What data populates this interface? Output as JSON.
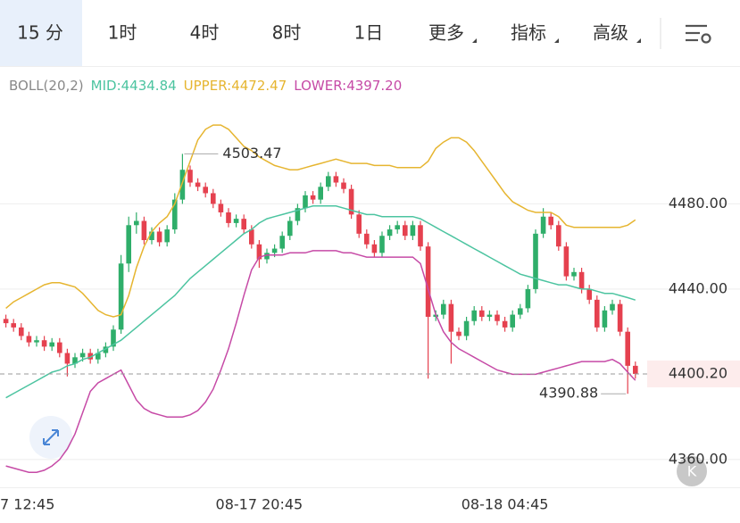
{
  "tabs": [
    "15 分",
    "1时",
    "4时",
    "8时",
    "1日",
    "更多",
    "指标",
    "高级"
  ],
  "indicator_legend": {
    "name": "BOLL(20,2)",
    "mid": "MID:4434.84",
    "upper": "UPPER:4472.47",
    "lower": "LOWER:4397.20"
  },
  "chart_data": {
    "type": "candlestick",
    "categories": [
      null,
      "7 12:45",
      null,
      null,
      null,
      null,
      null,
      null,
      null,
      null,
      null,
      null,
      null,
      null,
      null,
      null,
      null,
      null,
      null,
      null,
      null,
      null,
      null,
      null,
      null,
      null,
      null,
      null,
      null,
      null,
      null,
      null,
      null,
      "08-17 20:45",
      null,
      null,
      null,
      null,
      null,
      null,
      null,
      null,
      null,
      null,
      null,
      null,
      null,
      null,
      null,
      null,
      null,
      null,
      null,
      null,
      null,
      null,
      null,
      null,
      null,
      null,
      null,
      null,
      null,
      null,
      null,
      "08-18 04:45",
      null,
      null,
      null,
      null,
      null,
      null,
      null,
      null,
      null,
      null,
      null,
      null,
      null,
      null,
      null,
      null,
      null
    ],
    "up_color": "#2fae6a",
    "down_color": "#e5414f",
    "open": [
      4426,
      4424,
      4422,
      4418,
      4415,
      4416,
      4413,
      4415,
      4410,
      4405,
      4408,
      4410,
      4407,
      4410,
      4413,
      4421,
      4452,
      4470,
      4472,
      4463,
      4467,
      4462,
      4468,
      4482,
      4496,
      4490,
      4488,
      4485,
      4480,
      4476,
      4471,
      4473,
      4468,
      4461,
      4454,
      4457,
      4459,
      4465,
      4472,
      4478,
      4484,
      4482,
      4488,
      4493,
      4490,
      4487,
      4475,
      4466,
      4461,
      4457,
      4465,
      4468,
      4470,
      4465,
      4470,
      4460,
      4427,
      4428,
      4433,
      4420,
      4418,
      4425,
      4430,
      4427,
      4428,
      4425,
      4422,
      4428,
      4431,
      4440,
      4466,
      4474,
      4470,
      4460,
      4446,
      4448,
      4440,
      4435,
      4422,
      4430,
      4433,
      4420,
      4404
    ],
    "high": [
      4428,
      4426,
      4424,
      4420,
      4418,
      4418,
      4417,
      4417,
      4412,
      4410,
      4412,
      4412,
      4412,
      4415,
      4423,
      4456,
      4474,
      4476,
      4474,
      4469,
      4469,
      4470,
      4485,
      4503.47,
      4498,
      4492,
      4490,
      4487,
      4482,
      4478,
      4475,
      4475,
      4470,
      4463,
      4459,
      4461,
      4467,
      4474,
      4480,
      4486,
      4486,
      4490,
      4495,
      4495,
      4492,
      4489,
      4477,
      4468,
      4463,
      4467,
      4470,
      4472,
      4472,
      4472,
      4472,
      4462,
      4430,
      4435,
      4435,
      4422,
      4427,
      4432,
      4432,
      4430,
      4430,
      4427,
      4430,
      4433,
      4442,
      4468,
      4478,
      4476,
      4472,
      4462,
      4450,
      4450,
      4442,
      4437,
      4432,
      4435,
      4435,
      4422,
      4406
    ],
    "low": [
      4422,
      4420,
      4416,
      4413,
      4413,
      4411,
      4411,
      4408,
      4399,
      4403,
      4406,
      4405,
      4405,
      4408,
      4411,
      4419,
      4448,
      4466,
      4461,
      4461,
      4460,
      4460,
      4466,
      4480,
      4488,
      4486,
      4483,
      4478,
      4474,
      4469,
      4469,
      4466,
      4459,
      4450,
      4452,
      4455,
      4457,
      4463,
      4470,
      4476,
      4480,
      4480,
      4486,
      4488,
      4485,
      4473,
      4464,
      4459,
      4455,
      4455,
      4463,
      4466,
      4463,
      4463,
      4458,
      4398,
      4425,
      4426,
      4405,
      4416,
      4416,
      4423,
      4425,
      4425,
      4423,
      4420,
      4420,
      4426,
      4429,
      4438,
      4464,
      4468,
      4458,
      4444,
      4444,
      4438,
      4433,
      4420,
      4420,
      4428,
      4418,
      4390.88,
      4398
    ],
    "close": [
      4424,
      4422,
      4418,
      4415,
      4416,
      4413,
      4415,
      4410,
      4405,
      4408,
      4410,
      4407,
      4410,
      4413,
      4421,
      4452,
      4470,
      4472,
      4463,
      4467,
      4462,
      4468,
      4482,
      4496,
      4490,
      4488,
      4485,
      4480,
      4476,
      4471,
      4473,
      4468,
      4461,
      4454,
      4457,
      4459,
      4465,
      4472,
      4478,
      4484,
      4482,
      4488,
      4493,
      4490,
      4487,
      4475,
      4466,
      4461,
      4457,
      4465,
      4468,
      4470,
      4465,
      4470,
      4460,
      4427,
      4428,
      4433,
      4420,
      4418,
      4425,
      4430,
      4427,
      4428,
      4425,
      4422,
      4428,
      4431,
      4440,
      4466,
      4474,
      4470,
      4460,
      4446,
      4448,
      4440,
      4435,
      4422,
      4430,
      4433,
      4420,
      4404,
      4400.2
    ],
    "bands": [
      {
        "color": "#e6b530",
        "values": [
          4431,
          4434,
          4436,
          4438,
          4440,
          4442,
          4443,
          4443,
          4442,
          4441,
          4438,
          4434,
          4430,
          4428,
          4427,
          4428,
          4437,
          4450,
          4460,
          4467,
          4471,
          4474,
          4480,
          4490,
          4500,
          4510,
          4515,
          4517,
          4517,
          4515,
          4511,
          4507,
          4505,
          4502,
          4500,
          4498,
          4497,
          4496,
          4496,
          4497,
          4498,
          4499,
          4500,
          4501,
          4500,
          4499,
          4499,
          4499,
          4498,
          4498,
          4498,
          4497,
          4497,
          4497,
          4497,
          4500,
          4506,
          4509,
          4511,
          4511,
          4509,
          4505,
          4500,
          4495,
          4490,
          4485,
          4481,
          4479,
          4477,
          4476,
          4476,
          4476,
          4474,
          4470,
          4469,
          4469,
          4469,
          4469,
          4469,
          4469,
          4469,
          4470,
          4472.47
        ]
      },
      {
        "color": "#4cc4a0",
        "values": [
          4389,
          4391,
          4393,
          4395,
          4397,
          4399,
          4401,
          4402,
          4404,
          4405,
          4407,
          4408,
          4410,
          4412,
          4414,
          4416,
          4419,
          4422,
          4425,
          4428,
          4431,
          4434,
          4437,
          4441,
          4445,
          4448,
          4451,
          4454,
          4457,
          4460,
          4463,
          4466,
          4468,
          4471,
          4473,
          4474,
          4475,
          4476,
          4477,
          4478,
          4479,
          4479,
          4479,
          4479,
          4478,
          4477,
          4476,
          4475,
          4475,
          4474,
          4474,
          4474,
          4474,
          4474,
          4473,
          4471,
          4469,
          4467,
          4465,
          4463,
          4461,
          4459,
          4457,
          4455,
          4453,
          4451,
          4449,
          4447,
          4446,
          4445,
          4444,
          4443,
          4442,
          4442,
          4441,
          4440,
          4440,
          4439,
          4438,
          4438,
          4437,
          4436,
          4434.84
        ]
      },
      {
        "color": "#c64aa6",
        "values": [
          4357,
          4356,
          4355,
          4354,
          4354,
          4355,
          4357,
          4360,
          4365,
          4372,
          4382,
          4392,
          4396,
          4398,
          4400,
          4402,
          4395,
          4388,
          4384,
          4382,
          4381,
          4380,
          4380,
          4380,
          4381,
          4383,
          4387,
          4393,
          4402,
          4412,
          4424,
          4437,
          4449,
          4455,
          4456,
          4456,
          4456,
          4457,
          4457,
          4457,
          4458,
          4458,
          4458,
          4458,
          4457,
          4457,
          4456,
          4455,
          4455,
          4455,
          4455,
          4455,
          4455,
          4455,
          4452,
          4440,
          4428,
          4420,
          4415,
          4412,
          4410,
          4408,
          4406,
          4404,
          4402,
          4401,
          4400,
          4400,
          4400,
          4400,
          4401,
          4402,
          4403,
          4404,
          4405,
          4406,
          4406,
          4406,
          4406,
          4407,
          4405,
          4401,
          4397.2
        ]
      }
    ],
    "ylim": [
      4347.4,
      4529.6
    ],
    "yticks": [
      {
        "value": 4360,
        "label": "4360.00"
      },
      {
        "value": 4440,
        "label": "4440.00"
      },
      {
        "value": 4480,
        "label": "4480.00"
      }
    ],
    "grid": true,
    "last_price": {
      "value": 4400.2,
      "label": "4400.20"
    },
    "high_marker": {
      "value": 4503.47,
      "label": "4503.47"
    },
    "low_marker": {
      "value": 4390.88,
      "label": "4390.88"
    }
  }
}
